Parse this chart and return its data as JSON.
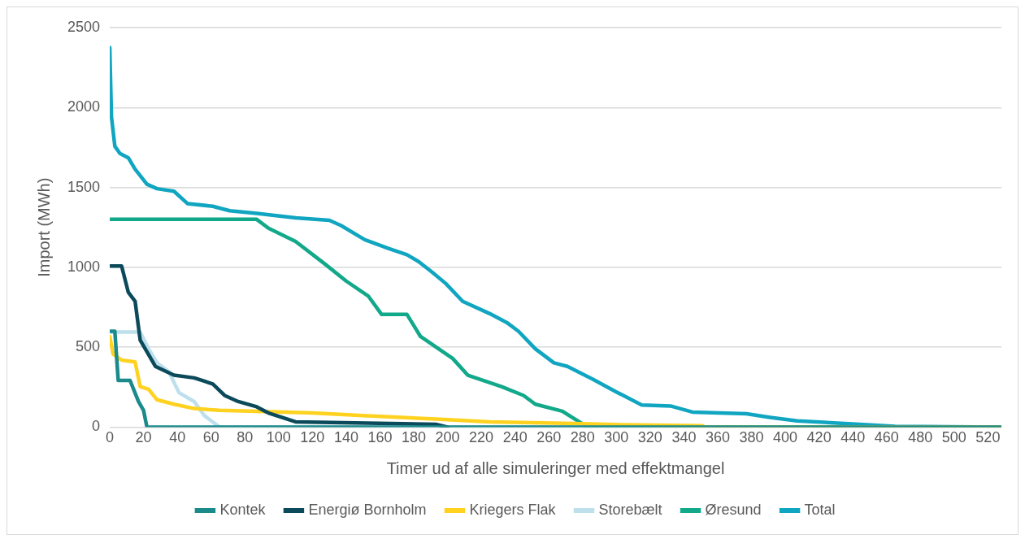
{
  "chart_data": {
    "type": "line",
    "xlabel": "Timer ud af alle simuleringer med effektmangel",
    "ylabel": "Import (MWh)",
    "xlim": [
      0,
      528
    ],
    "ylim": [
      0,
      2500
    ],
    "xticks": [
      0,
      20,
      40,
      60,
      80,
      100,
      120,
      140,
      160,
      180,
      200,
      220,
      240,
      260,
      280,
      300,
      320,
      340,
      360,
      380,
      400,
      420,
      440,
      460,
      480,
      500,
      520
    ],
    "yticks": [
      0,
      500,
      1000,
      1500,
      2000,
      2500
    ],
    "grid": "y",
    "legend": "bottom",
    "marker": "none",
    "line_style": "solid",
    "series": [
      {
        "name": "Kontek",
        "color": "#1a8a8a",
        "x": [
          0,
          3,
          5,
          12,
          17,
          20,
          22,
          528
        ],
        "values": [
          600,
          600,
          292,
          292,
          160,
          105,
          0,
          0
        ]
      },
      {
        "name": "Energiø Bornholm",
        "color": "#0b4a5a",
        "x": [
          0,
          7,
          11,
          15,
          18,
          27,
          38,
          50,
          61,
          68,
          76,
          87,
          94,
          110,
          193,
          200
        ],
        "values": [
          1008,
          1008,
          843,
          788,
          545,
          380,
          325,
          308,
          270,
          198,
          160,
          127,
          88,
          33,
          17,
          0
        ]
      },
      {
        "name": "Kriegers Flak",
        "color": "#ffd21f",
        "x": [
          0,
          2,
          7,
          15,
          18,
          23,
          28,
          38,
          50,
          65,
          87,
          120,
          150,
          193,
          225,
          275,
          303,
          351,
          352,
          528
        ],
        "values": [
          567,
          457,
          419,
          408,
          253,
          237,
          171,
          143,
          116,
          105,
          99,
          88,
          72,
          50,
          33,
          22,
          15,
          8,
          0,
          0
        ]
      },
      {
        "name": "Storebælt",
        "color": "#bde0ec",
        "x": [
          0,
          18,
          23,
          28,
          35,
          41,
          50,
          56,
          65,
          528
        ],
        "values": [
          595,
          595,
          490,
          402,
          347,
          215,
          160,
          72,
          0,
          0
        ]
      },
      {
        "name": "Øresund",
        "color": "#12a88a",
        "x": [
          0,
          87,
          94,
          110,
          127,
          140,
          153,
          161,
          176,
          184,
          203,
          212,
          232,
          245,
          252,
          268,
          283,
          528
        ],
        "values": [
          1300,
          1300,
          1245,
          1162,
          1024,
          914,
          821,
          705,
          705,
          567,
          430,
          325,
          253,
          198,
          143,
          99,
          0,
          0
        ]
      },
      {
        "name": "Total",
        "color": "#10a5c0",
        "x": [
          0,
          1,
          3,
          6,
          11,
          15,
          22,
          28,
          38,
          46,
          61,
          71,
          87,
          110,
          130,
          137,
          151,
          165,
          176,
          183,
          191,
          199,
          209,
          225,
          235,
          242,
          252,
          263,
          271,
          286,
          300,
          315,
          332,
          345,
          377,
          391,
          407,
          444,
          465,
          528
        ],
        "values": [
          2375,
          1942,
          1758,
          1713,
          1685,
          1614,
          1520,
          1492,
          1476,
          1399,
          1382,
          1354,
          1338,
          1310,
          1294,
          1261,
          1173,
          1118,
          1079,
          1035,
          969,
          898,
          787,
          710,
          655,
          600,
          490,
          402,
          380,
          300,
          220,
          138,
          132,
          94,
          83,
          61,
          39,
          17,
          5,
          0
        ]
      }
    ]
  }
}
